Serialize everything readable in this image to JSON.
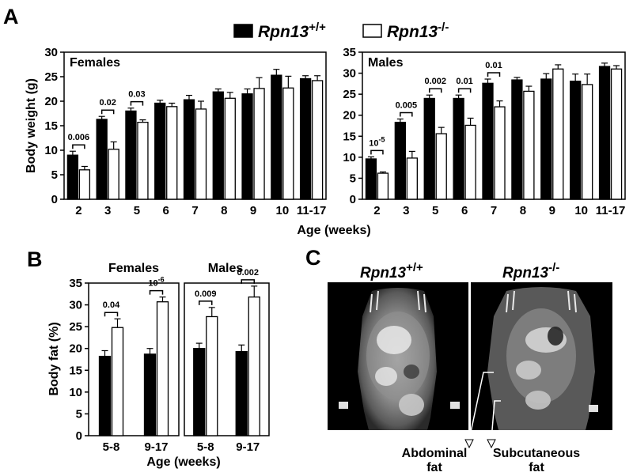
{
  "figure": {
    "panel_a_letter": "A",
    "panel_b_letter": "B",
    "panel_c_letter": "C",
    "legend": {
      "wt_label": "Rpn13",
      "wt_sup": "+/+",
      "ko_label": "Rpn13",
      "ko_sup": "-/-"
    },
    "colors": {
      "wt_fill": "#000000",
      "ko_fill": "#ffffff",
      "bar_stroke": "#000000"
    }
  },
  "chart_data": [
    {
      "id": "A_females",
      "type": "bar",
      "title": "Females",
      "xlabel": "Age (weeks)",
      "ylabel": "Body weight (g)",
      "ylim": [
        0,
        30
      ],
      "yticks": [
        0,
        5,
        10,
        15,
        20,
        25,
        30
      ],
      "categories": [
        "2",
        "3",
        "5",
        "6",
        "7",
        "8",
        "9",
        "10",
        "11-17"
      ],
      "series": [
        {
          "name": "Rpn13+/+",
          "values": [
            9.0,
            16.3,
            18.0,
            19.6,
            20.3,
            21.9,
            21.5,
            25.3,
            24.6
          ],
          "errors": [
            0.8,
            0.6,
            0.6,
            0.6,
            0.9,
            0.6,
            1.0,
            1.2,
            0.6
          ]
        },
        {
          "name": "Rpn13-/-",
          "values": [
            6.0,
            10.2,
            15.7,
            18.9,
            18.4,
            20.6,
            22.6,
            22.7,
            24.2
          ],
          "errors": [
            0.7,
            1.5,
            0.5,
            0.7,
            1.6,
            1.2,
            2.2,
            2.4,
            1.0
          ]
        }
      ],
      "annotations": [
        {
          "category": "2",
          "text": "0.006"
        },
        {
          "category": "3",
          "text": "0.02"
        },
        {
          "category": "5",
          "text": "0.03"
        }
      ]
    },
    {
      "id": "A_males",
      "type": "bar",
      "title": "Males",
      "xlabel": "Age (weeks)",
      "ylabel": "",
      "ylim": [
        0,
        35
      ],
      "yticks": [
        0,
        5,
        10,
        15,
        20,
        25,
        30,
        35
      ],
      "categories": [
        "2",
        "3",
        "5",
        "6",
        "7",
        "8",
        "9",
        "10",
        "11-17"
      ],
      "series": [
        {
          "name": "Rpn13+/+",
          "values": [
            9.6,
            18.3,
            24.0,
            24.0,
            27.6,
            28.4,
            28.6,
            28.1,
            31.6
          ],
          "errors": [
            0.5,
            0.8,
            0.8,
            0.8,
            1.0,
            0.6,
            1.3,
            1.7,
            0.8
          ]
        },
        {
          "name": "Rpn13-/-",
          "values": [
            6.2,
            9.8,
            15.6,
            17.6,
            22.0,
            25.7,
            31.0,
            27.3,
            31.0
          ],
          "errors": [
            0.3,
            1.6,
            1.5,
            1.7,
            1.4,
            1.2,
            1.0,
            2.5,
            0.8
          ]
        }
      ],
      "annotations": [
        {
          "category": "2",
          "text": "10",
          "sup": "-5"
        },
        {
          "category": "3",
          "text": "0.005"
        },
        {
          "category": "5",
          "text": "0.002"
        },
        {
          "category": "6",
          "text": "0.01"
        },
        {
          "category": "7",
          "text": "0.01"
        }
      ]
    },
    {
      "id": "B_females",
      "type": "bar",
      "title": "Females",
      "xlabel": "Age (weeks)",
      "ylabel": "Body fat (%)",
      "ylim": [
        0,
        35
      ],
      "yticks": [
        0,
        5,
        10,
        15,
        20,
        25,
        30,
        35
      ],
      "categories": [
        "5-8",
        "9-17"
      ],
      "series": [
        {
          "name": "Rpn13+/+",
          "values": [
            18.2,
            18.7
          ],
          "errors": [
            1.3,
            1.3
          ]
        },
        {
          "name": "Rpn13-/-",
          "values": [
            24.8,
            30.7
          ],
          "errors": [
            2.0,
            1.1
          ]
        }
      ],
      "annotations": [
        {
          "category": "5-8",
          "text": "0.04"
        },
        {
          "category": "9-17",
          "text": "10",
          "sup": "-6"
        }
      ]
    },
    {
      "id": "B_males",
      "type": "bar",
      "title": "Males",
      "xlabel": "",
      "ylabel": "",
      "ylim": [
        0,
        35
      ],
      "yticks": [],
      "categories": [
        "5-8",
        "9-17"
      ],
      "series": [
        {
          "name": "Rpn13+/+",
          "values": [
            20.0,
            19.3
          ],
          "errors": [
            1.2,
            1.5
          ]
        },
        {
          "name": "Rpn13-/-",
          "values": [
            27.3,
            31.8
          ],
          "errors": [
            2.1,
            2.5
          ]
        }
      ],
      "annotations": [
        {
          "category": "5-8",
          "text": "0.009"
        },
        {
          "category": "9-17",
          "text": "0.002"
        }
      ]
    }
  ],
  "panel_c": {
    "left_title": "Rpn13",
    "left_sup": "+/+",
    "right_title": "Rpn13",
    "right_sup": "-/-",
    "label_abdominal_1": "Abdominal",
    "label_abdominal_2": "fat",
    "label_subcutaneous_1": "Subcutaneous",
    "label_subcutaneous_2": "fat"
  }
}
